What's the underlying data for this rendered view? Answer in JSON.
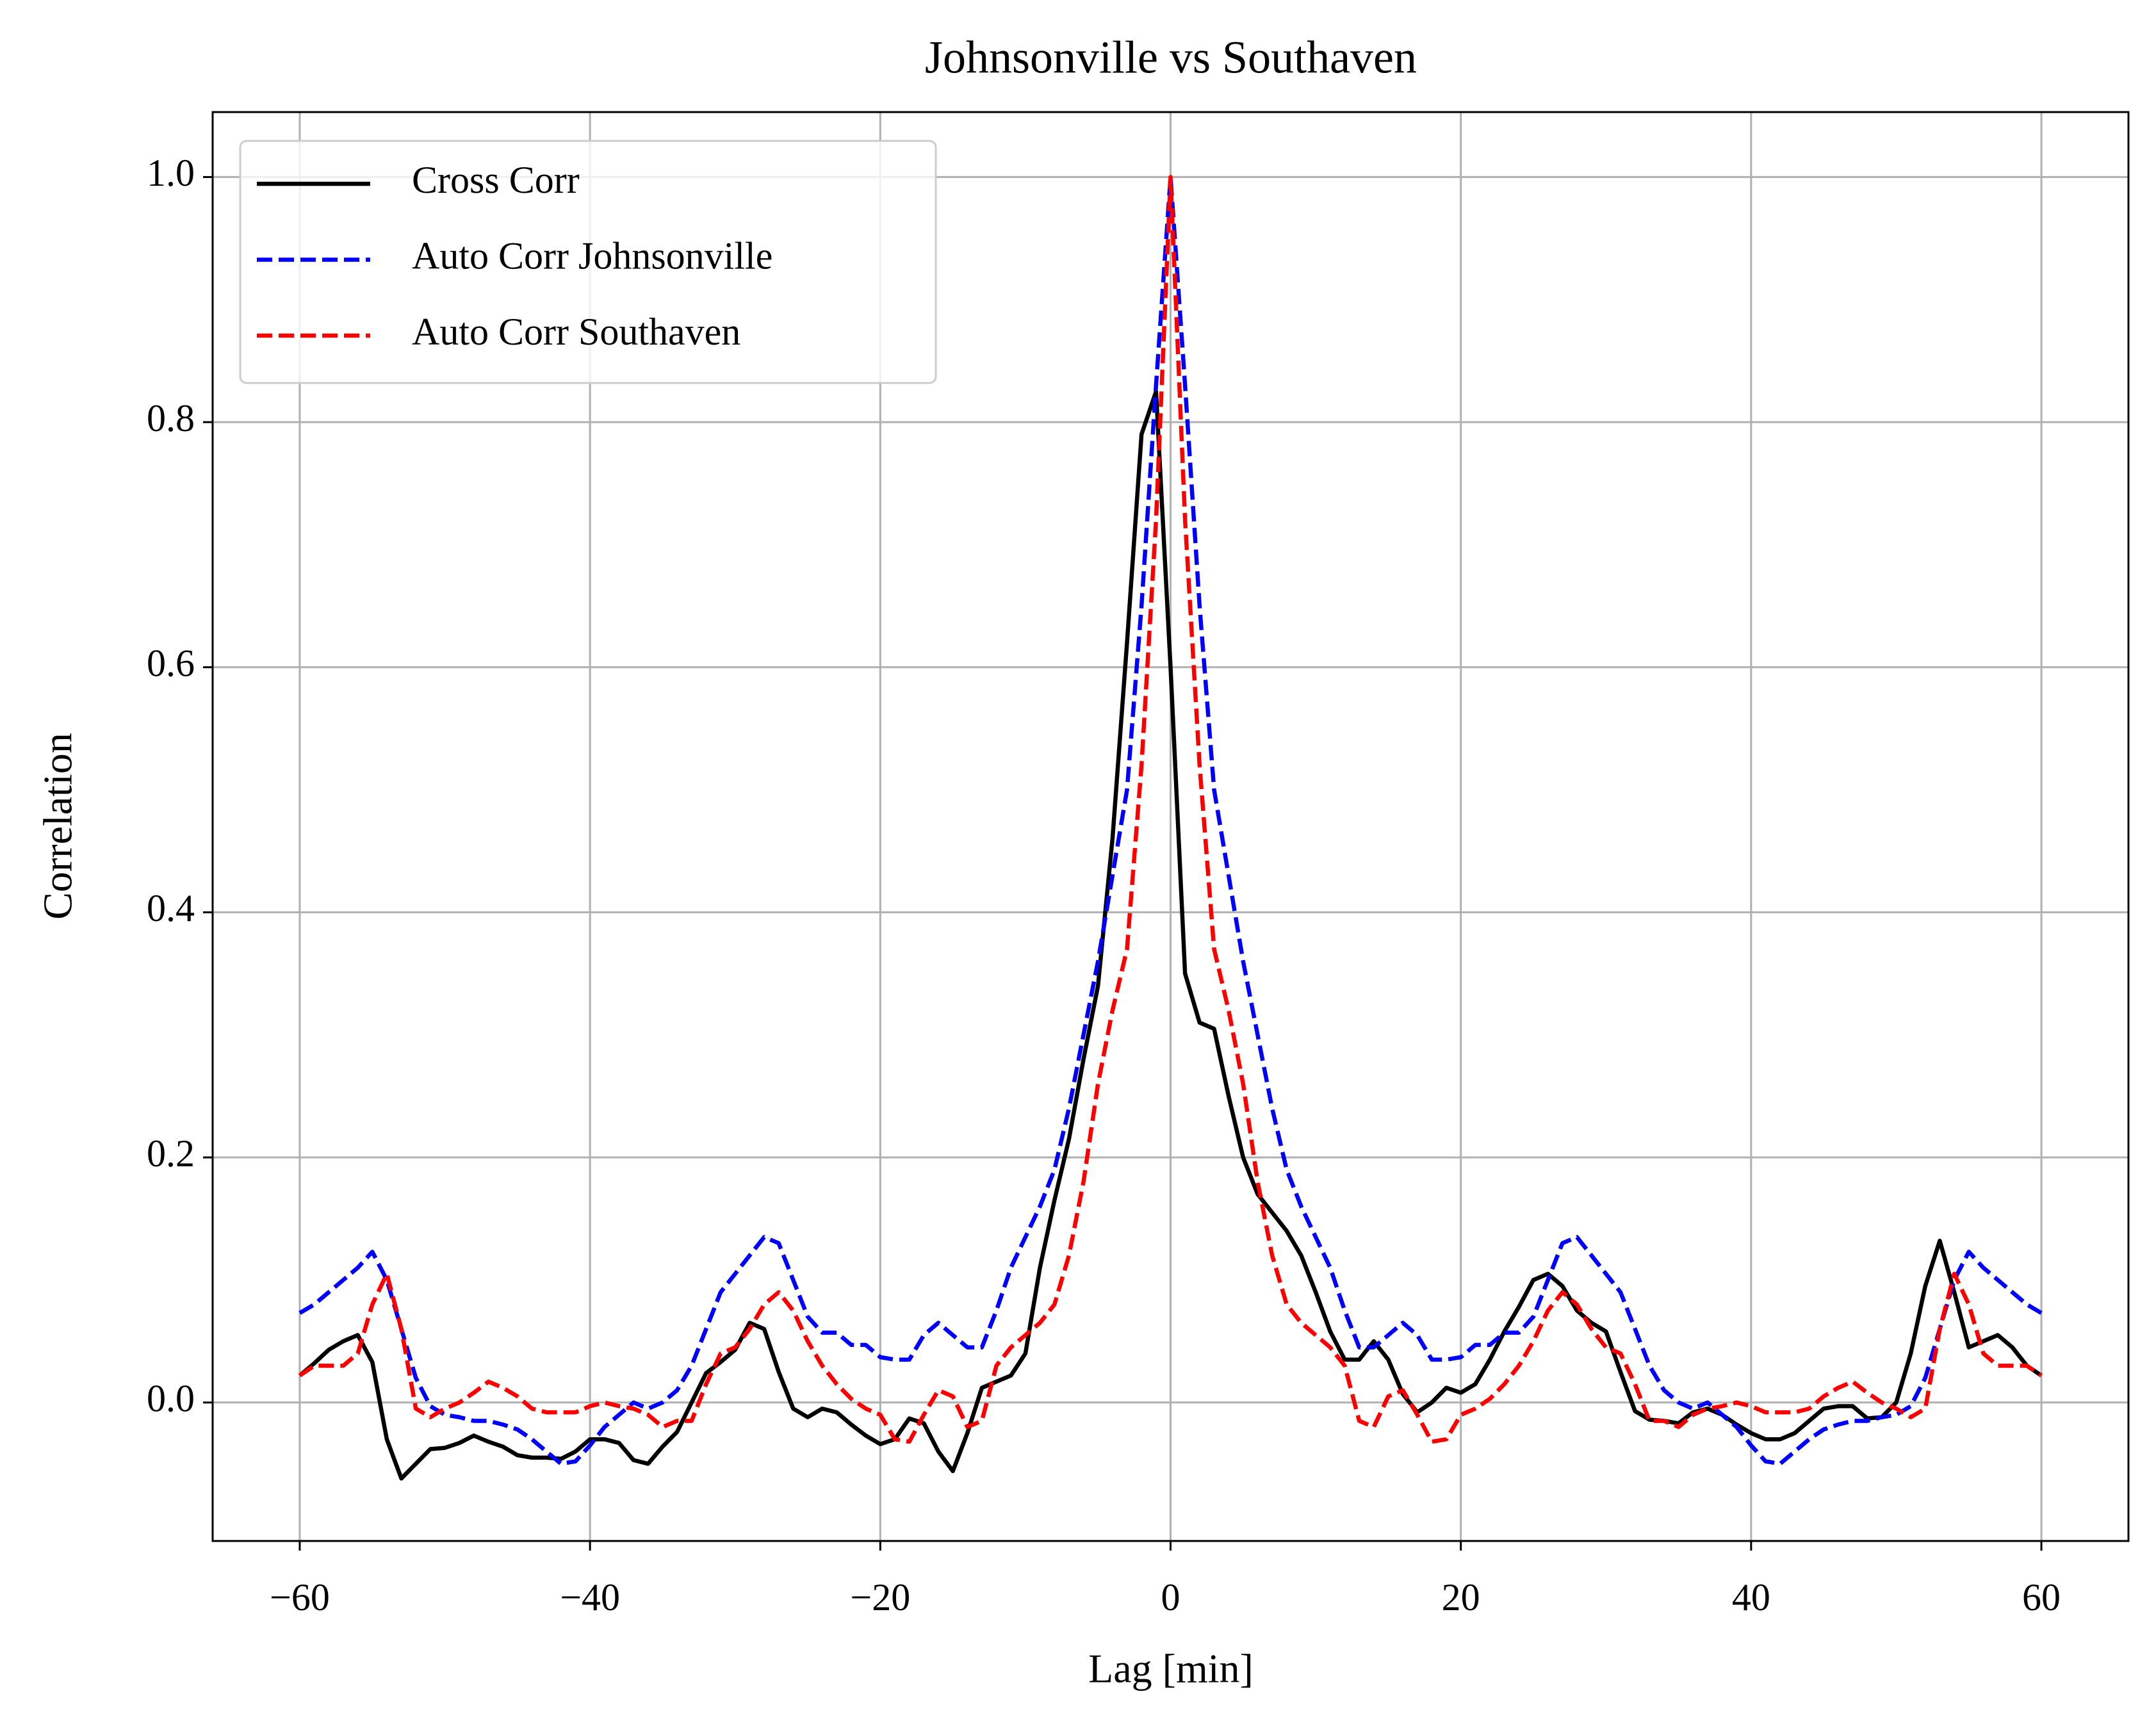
{
  "chart_data": {
    "type": "line",
    "title": "Johnsonville vs Southaven",
    "x_label": "Lag [min]",
    "y_label": "Correlation",
    "x": [
      -60,
      -59,
      -58,
      -57,
      -56,
      -55,
      -54,
      -53,
      -52,
      -51,
      -50,
      -49,
      -48,
      -47,
      -46,
      -45,
      -44,
      -43,
      -42,
      -41,
      -40,
      -39,
      -38,
      -37,
      -36,
      -35,
      -34,
      -33,
      -32,
      -31,
      -30,
      -29,
      -28,
      -27,
      -26,
      -25,
      -24,
      -23,
      -22,
      -21,
      -20,
      -19,
      -18,
      -17,
      -16,
      -15,
      -14,
      -13,
      -12,
      -11,
      -10,
      -9,
      -8,
      -7,
      -6,
      -5,
      -4,
      -3,
      -2,
      -1,
      0,
      1,
      2,
      3,
      4,
      5,
      6,
      7,
      8,
      9,
      10,
      11,
      12,
      13,
      14,
      15,
      16,
      17,
      18,
      19,
      20,
      21,
      22,
      23,
      24,
      25,
      26,
      27,
      28,
      29,
      30,
      31,
      32,
      33,
      34,
      35,
      36,
      37,
      38,
      39,
      40,
      41,
      42,
      43,
      44,
      45,
      46,
      47,
      48,
      49,
      50,
      51,
      52,
      53,
      54,
      55,
      56,
      57,
      58,
      59,
      60
    ],
    "series": [
      {
        "name": "Cross Corr",
        "color": "#000000",
        "dash": false,
        "values": [
          0.022,
          0.032,
          0.043,
          0.05,
          0.055,
          0.033,
          -0.03,
          -0.062,
          -0.05,
          -0.038,
          -0.037,
          -0.033,
          -0.027,
          -0.032,
          -0.036,
          -0.043,
          -0.045,
          -0.045,
          -0.046,
          -0.04,
          -0.03,
          -0.03,
          -0.033,
          -0.047,
          -0.05,
          -0.036,
          -0.024,
          0.0,
          0.024,
          0.033,
          0.043,
          0.065,
          0.06,
          0.025,
          -0.005,
          -0.012,
          -0.005,
          -0.008,
          -0.018,
          -0.027,
          -0.034,
          -0.03,
          -0.013,
          -0.017,
          -0.04,
          -0.056,
          -0.025,
          0.012,
          0.017,
          0.022,
          0.04,
          0.11,
          0.165,
          0.215,
          0.28,
          0.34,
          0.46,
          0.62,
          0.79,
          0.825,
          0.6,
          0.35,
          0.31,
          0.305,
          0.25,
          0.2,
          0.17,
          0.155,
          0.14,
          0.12,
          0.09,
          0.058,
          0.035,
          0.035,
          0.05,
          0.035,
          0.007,
          -0.008,
          0.0,
          0.012,
          0.008,
          0.015,
          0.035,
          0.058,
          0.078,
          0.1,
          0.105,
          0.095,
          0.075,
          0.065,
          0.058,
          0.025,
          -0.007,
          -0.014,
          -0.015,
          -0.017,
          -0.008,
          -0.005,
          -0.01,
          -0.018,
          -0.025,
          -0.03,
          -0.03,
          -0.025,
          -0.015,
          -0.005,
          -0.003,
          -0.003,
          -0.013,
          -0.012,
          0.0,
          0.04,
          0.095,
          0.132,
          0.09,
          0.045,
          0.05,
          0.055,
          0.045,
          0.03,
          0.022
        ]
      },
      {
        "name": "Auto Corr Johnsonville",
        "color": "#0000ff",
        "dash": true,
        "values": [
          0.073,
          0.08,
          0.09,
          0.1,
          0.11,
          0.123,
          0.1,
          0.06,
          0.02,
          -0.003,
          -0.01,
          -0.012,
          -0.015,
          -0.015,
          -0.018,
          -0.022,
          -0.03,
          -0.04,
          -0.05,
          -0.048,
          -0.035,
          -0.02,
          -0.01,
          0.0,
          -0.005,
          0.0,
          0.01,
          0.03,
          0.06,
          0.09,
          0.105,
          0.12,
          0.135,
          0.13,
          0.1,
          0.07,
          0.057,
          0.057,
          0.047,
          0.047,
          0.037,
          0.035,
          0.035,
          0.055,
          0.065,
          0.055,
          0.045,
          0.045,
          0.075,
          0.11,
          0.135,
          0.16,
          0.19,
          0.24,
          0.3,
          0.36,
          0.43,
          0.5,
          0.65,
          0.83,
          1.0,
          0.83,
          0.65,
          0.5,
          0.43,
          0.36,
          0.3,
          0.24,
          0.19,
          0.16,
          0.135,
          0.11,
          0.075,
          0.045,
          0.045,
          0.055,
          0.065,
          0.055,
          0.035,
          0.035,
          0.037,
          0.047,
          0.047,
          0.057,
          0.057,
          0.07,
          0.1,
          0.13,
          0.135,
          0.12,
          0.105,
          0.09,
          0.06,
          0.03,
          0.01,
          0.0,
          -0.005,
          0.0,
          -0.01,
          -0.02,
          -0.035,
          -0.048,
          -0.05,
          -0.04,
          -0.03,
          -0.022,
          -0.018,
          -0.015,
          -0.015,
          -0.012,
          -0.01,
          -0.003,
          0.02,
          0.06,
          0.1,
          0.123,
          0.11,
          0.1,
          0.09,
          0.08,
          0.073
        ]
      },
      {
        "name": "Auto Corr Southaven",
        "color": "#ff0000",
        "dash": true,
        "values": [
          0.022,
          0.03,
          0.03,
          0.03,
          0.04,
          0.08,
          0.105,
          0.06,
          -0.005,
          -0.012,
          -0.005,
          0.0,
          0.008,
          0.017,
          0.012,
          0.005,
          -0.005,
          -0.008,
          -0.008,
          -0.008,
          -0.003,
          0.0,
          -0.003,
          -0.005,
          -0.01,
          -0.02,
          -0.015,
          -0.015,
          0.015,
          0.04,
          0.045,
          0.06,
          0.08,
          0.09,
          0.075,
          0.05,
          0.03,
          0.015,
          0.003,
          -0.005,
          -0.01,
          -0.03,
          -0.032,
          -0.01,
          0.01,
          0.005,
          -0.02,
          -0.015,
          0.03,
          0.045,
          0.055,
          0.065,
          0.08,
          0.12,
          0.18,
          0.26,
          0.32,
          0.37,
          0.52,
          0.72,
          1.0,
          0.72,
          0.52,
          0.37,
          0.32,
          0.26,
          0.18,
          0.12,
          0.08,
          0.065,
          0.055,
          0.045,
          0.03,
          -0.015,
          -0.02,
          0.005,
          0.01,
          -0.01,
          -0.032,
          -0.03,
          -0.01,
          -0.005,
          0.003,
          0.015,
          0.03,
          0.05,
          0.075,
          0.09,
          0.08,
          0.06,
          0.045,
          0.04,
          0.015,
          -0.015,
          -0.015,
          -0.02,
          -0.01,
          -0.005,
          -0.003,
          0.0,
          -0.003,
          -0.008,
          -0.008,
          -0.008,
          -0.005,
          0.005,
          0.012,
          0.017,
          0.008,
          0.0,
          -0.005,
          -0.012,
          -0.005,
          0.06,
          0.105,
          0.08,
          0.04,
          0.03,
          0.03,
          0.03,
          0.022
        ]
      }
    ],
    "xlim": [
      -66,
      66
    ],
    "ylim": [
      -0.113,
      1.053
    ],
    "xticks": [
      {
        "value": -60,
        "label": "−60"
      },
      {
        "value": -40,
        "label": "−40"
      },
      {
        "value": -20,
        "label": "−20"
      },
      0,
      20,
      40,
      60
    ],
    "yticks": [
      {
        "value": 0,
        "label": "0.0"
      },
      0.2,
      0.4,
      0.6,
      0.8,
      {
        "value": 1,
        "label": "1.0"
      }
    ],
    "grid": true,
    "legend": "upper left"
  }
}
